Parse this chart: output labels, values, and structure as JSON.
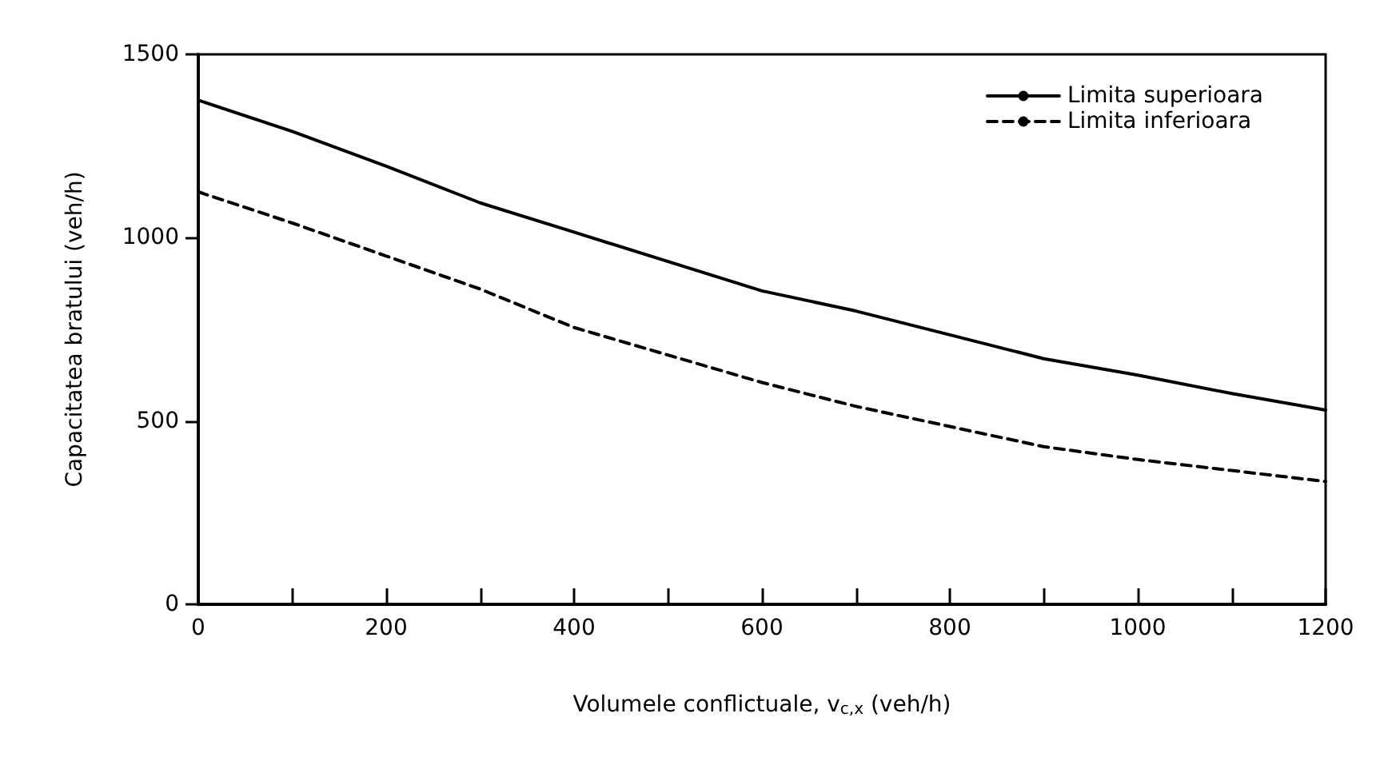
{
  "chart_data": {
    "type": "line",
    "xlabel": "Volumele conflictuale, v$_{c,x}$ (veh/h)",
    "ylabel": "Capacitatea bratului (veh/h)",
    "x": [
      0,
      100,
      200,
      300,
      400,
      500,
      600,
      700,
      800,
      900,
      1000,
      1100,
      1200
    ],
    "series": [
      {
        "name": "Limita superioara",
        "color": "#000000",
        "line_style": "solid",
        "values": [
          1375,
          1290,
          1195,
          1095,
          1015,
          935,
          855,
          800,
          735,
          670,
          625,
          575,
          530
        ]
      },
      {
        "name": "Limita inferioara",
        "color": "#000000",
        "line_style": "dashed",
        "values": [
          1125,
          1040,
          950,
          860,
          755,
          680,
          605,
          540,
          485,
          430,
          395,
          365,
          335
        ]
      }
    ],
    "xlim": [
      0,
      1200
    ],
    "xticks": [
      0,
      {
        "value": 100,
        "label": null
      },
      200,
      {
        "value": 300,
        "label": null
      },
      400,
      {
        "value": 500,
        "label": null
      },
      600,
      {
        "value": 700,
        "label": null
      },
      800,
      {
        "value": 900,
        "label": null
      },
      1000,
      {
        "value": 1100,
        "label": null
      },
      1200
    ],
    "ylim": [
      0,
      1500
    ],
    "yticks": [
      0,
      500,
      1000,
      1500
    ],
    "grid": false,
    "legend": "top right",
    "marker": "none"
  }
}
